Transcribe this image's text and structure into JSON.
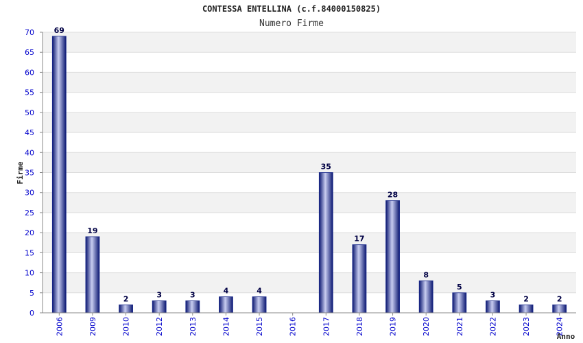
{
  "chart_data": {
    "type": "bar",
    "title": "CONTESSA ENTELLINA (c.f.84000150825)",
    "subtitle": "Numero Firme",
    "ylabel": "Firme",
    "xlabel": "Anno",
    "categories": [
      "2006",
      "2009",
      "2010",
      "2012",
      "2013",
      "2014",
      "2015",
      "2016",
      "2017",
      "2018",
      "2019",
      "2020",
      "2021",
      "2022",
      "2023",
      "2024"
    ],
    "values": [
      69,
      19,
      2,
      3,
      3,
      4,
      4,
      0,
      35,
      17,
      28,
      8,
      5,
      3,
      2,
      2
    ],
    "data_labels": [
      "69",
      "19",
      "2",
      "3",
      "3",
      "4",
      "4",
      "",
      "35",
      "17",
      "28",
      "8",
      "5",
      "3",
      "2",
      "2"
    ],
    "ylim": [
      0,
      70
    ],
    "yticks": [
      0,
      5,
      10,
      15,
      20,
      25,
      30,
      35,
      40,
      45,
      50,
      55,
      60,
      65,
      70
    ],
    "grid": true,
    "bar_color": "#1a2a8c",
    "band_color": "#f2f2f2"
  }
}
